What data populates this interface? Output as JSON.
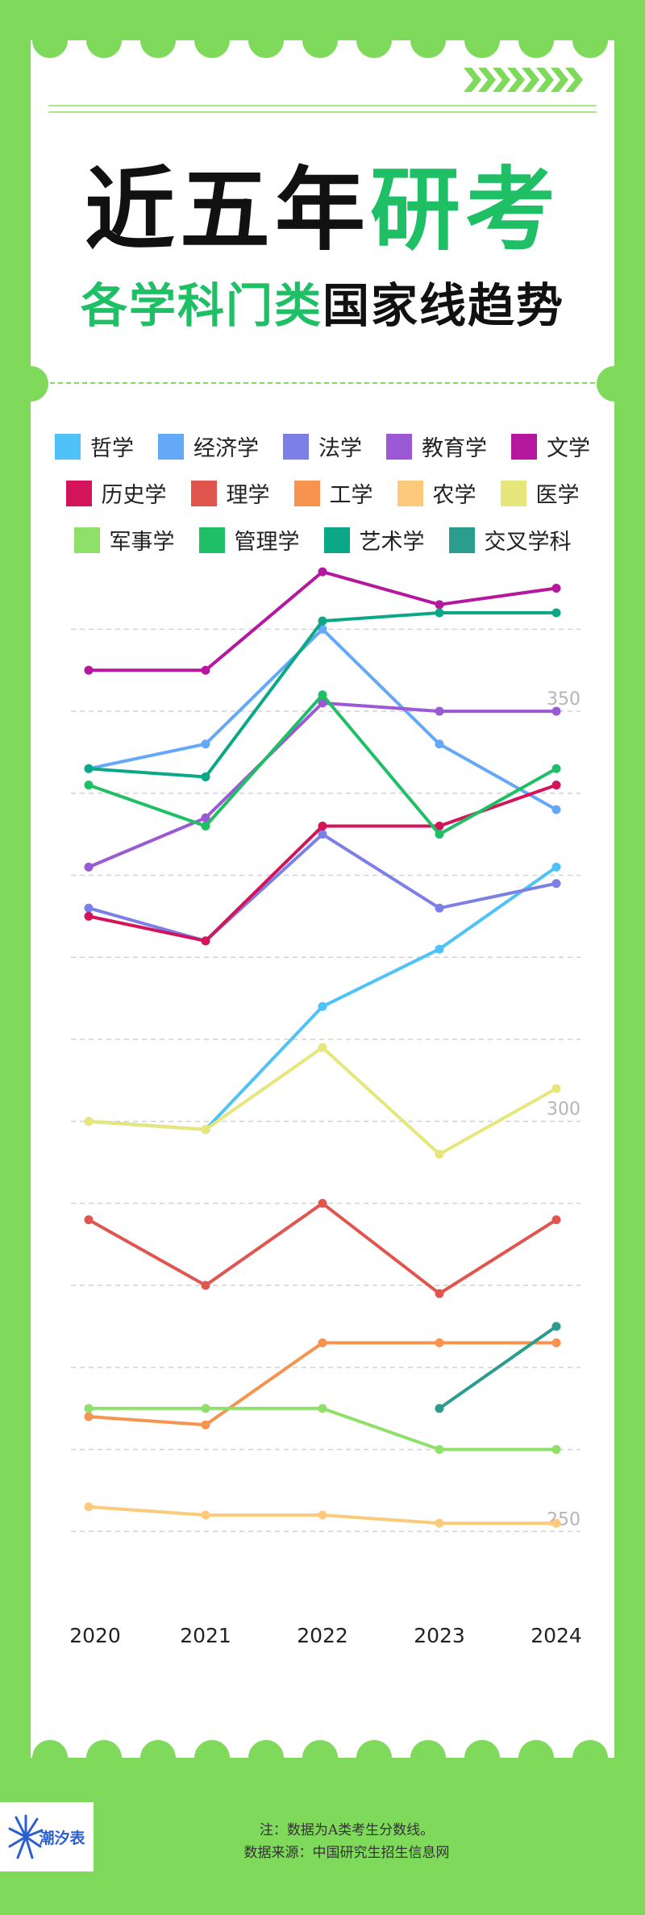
{
  "title": {
    "part1": "近五年",
    "part2": "研考"
  },
  "subtitle": {
    "part1": "各学科门类",
    "part2": "国家线趋势"
  },
  "legend_rows": [
    [
      0,
      1,
      2,
      3,
      4
    ],
    [
      5,
      6,
      7,
      8,
      9
    ],
    [
      10,
      11,
      12,
      13
    ]
  ],
  "chart_data": {
    "type": "line",
    "x": [
      "2020",
      "2021",
      "2022",
      "2023",
      "2024"
    ],
    "y_ticks": [
      250,
      300,
      350
    ],
    "ylim": [
      246,
      362
    ],
    "grid": true,
    "legend_placement": "top",
    "series": [
      {
        "name": "哲学",
        "color": "#4fc3f7",
        "values": [
          300,
          299,
          314,
          321,
          331
        ]
      },
      {
        "name": "经济学",
        "color": "#64a8f8",
        "values": [
          343,
          346,
          360,
          346,
          338
        ]
      },
      {
        "name": "法学",
        "color": "#7b7fe6",
        "values": [
          326,
          322,
          335,
          326,
          329
        ]
      },
      {
        "name": "教育学",
        "color": "#9b59d6",
        "values": [
          331,
          337,
          351,
          350,
          350
        ]
      },
      {
        "name": "文学",
        "color": "#b5179e",
        "values": [
          355,
          355,
          367,
          363,
          365
        ]
      },
      {
        "name": "历史学",
        "color": "#d4145a",
        "values": [
          325,
          322,
          336,
          336,
          341
        ]
      },
      {
        "name": "理学",
        "color": "#e0554d",
        "values": [
          288,
          280,
          290,
          279,
          288
        ]
      },
      {
        "name": "工学",
        "color": "#f5934f",
        "values": [
          264,
          263,
          273,
          273,
          273
        ]
      },
      {
        "name": "农学",
        "color": "#fdc97a",
        "values": [
          253,
          252,
          252,
          251,
          251
        ]
      },
      {
        "name": "医学",
        "color": "#e6e67a",
        "values": [
          300,
          299,
          309,
          296,
          304
        ]
      },
      {
        "name": "军事学",
        "color": "#8ee06a",
        "values": [
          265,
          265,
          265,
          260,
          260
        ]
      },
      {
        "name": "管理学",
        "color": "#1fbf66",
        "values": [
          341,
          336,
          352,
          335,
          343
        ]
      },
      {
        "name": "艺术学",
        "color": "#0aa886",
        "values": [
          343,
          342,
          361,
          362,
          362
        ]
      },
      {
        "name": "交叉学科",
        "color": "#2a9d8f",
        "values": [
          null,
          null,
          null,
          265,
          275
        ]
      }
    ]
  },
  "footer": {
    "note": "注：数据为A类考生分数线。",
    "source": "数据来源：中国研究生招生信息网"
  },
  "logo": {
    "text": "潮汐表"
  },
  "colors": {
    "background": "#7fd95a",
    "card": "#ffffff",
    "accent": "#1fbf66"
  }
}
